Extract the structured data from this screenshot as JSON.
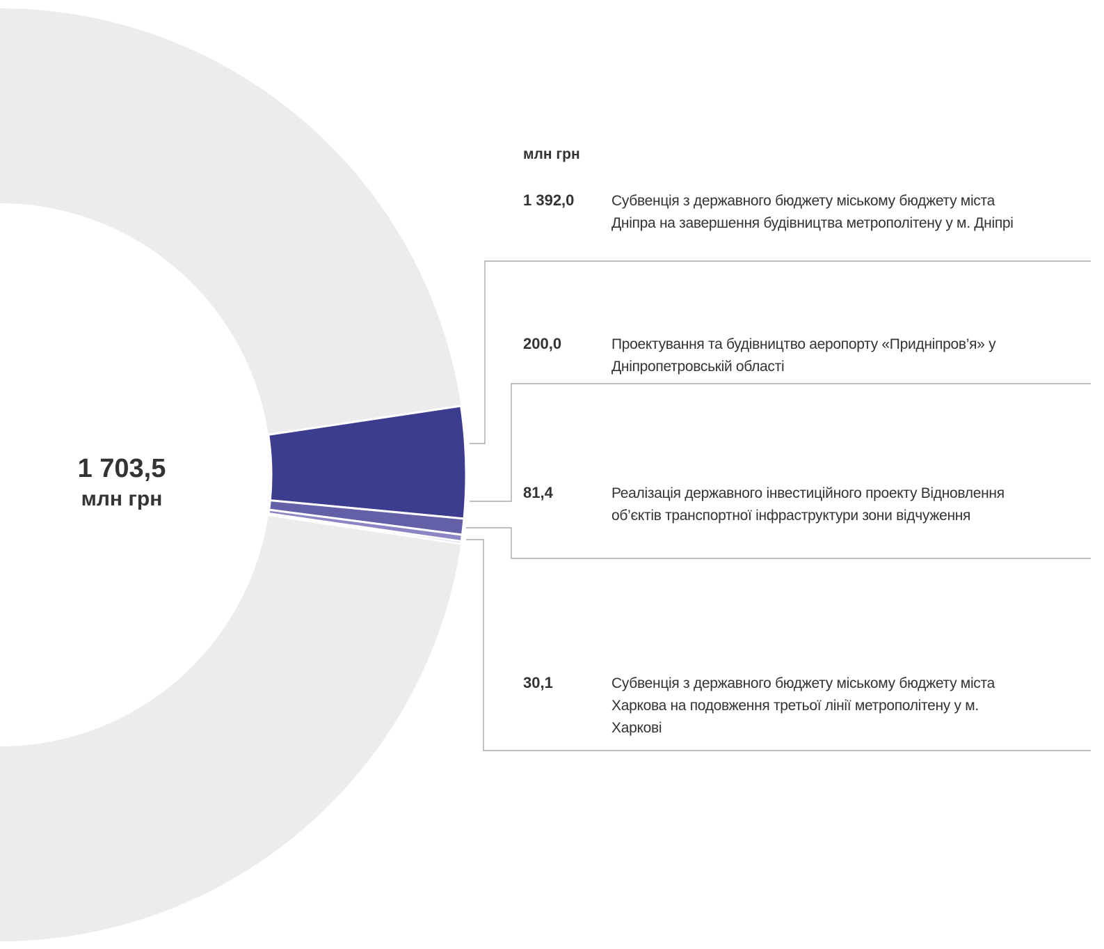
{
  "chart_data": {
    "type": "donut",
    "center_label": "1 703,5",
    "center_unit": "млн грн",
    "unit_header": "млн грн",
    "categories": [
      "Субвенція з державного бюджету міському бюджету міста Дніпра на завершення будівництва метрополітену у м. Дніпрі",
      "Проектування та будівництво аеропорту «Придніпров’я» у Дніпропетровській області",
      "Реалізація державного інвестиційного проекту Відновлення об’єктів транспортної інфраструктури зони відчуження",
      "Субвенція з державного бюджету міському бюджету міста Харкова на подовження третьої лінії метрополітену у м. Харкові"
    ],
    "values": [
      1392.0,
      200.0,
      81.4,
      30.1
    ],
    "value_labels": [
      "1 392,0",
      "200,0",
      "81,4",
      "30,1"
    ],
    "colors": [
      "#3d3d8f",
      "#6460a8",
      "#8b85c4",
      "#b0aad8"
    ]
  }
}
